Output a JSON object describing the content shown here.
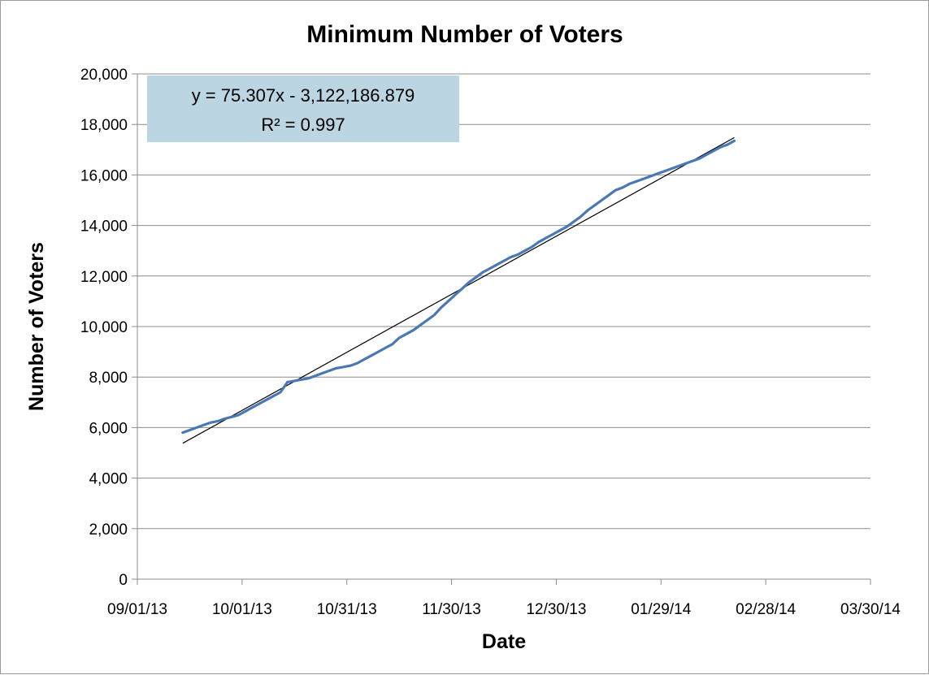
{
  "chart_data": {
    "type": "line",
    "title": "Minimum Number of Voters",
    "xlabel": "Date",
    "ylabel": "Number of Voters",
    "x_axis": {
      "kind": "date",
      "min": "2013-09-01",
      "max": "2014-03-30",
      "ticks": [
        "2013-09-01",
        "2013-10-01",
        "2013-10-31",
        "2013-11-30",
        "2013-12-30",
        "2014-01-29",
        "2014-02-28",
        "2014-03-30"
      ],
      "tick_labels": [
        "09/01/13",
        "10/01/13",
        "10/31/13",
        "11/30/13",
        "12/30/13",
        "01/29/14",
        "02/28/14",
        "03/30/14"
      ]
    },
    "y_axis": {
      "min": 0,
      "max": 20000,
      "ticks": [
        0,
        2000,
        4000,
        6000,
        8000,
        10000,
        12000,
        14000,
        16000,
        18000,
        20000
      ],
      "tick_labels": [
        "0",
        "2,000",
        "4,000",
        "6,000",
        "8,000",
        "10,000",
        "12,000",
        "14,000",
        "16,000",
        "18,000",
        "20,000"
      ]
    },
    "grid": {
      "horizontal": true,
      "vertical": false
    },
    "legend": "none",
    "series": [
      {
        "color": "#4a78b4",
        "points": [
          [
            "2013-09-14",
            5800
          ],
          [
            "2013-09-16",
            5900
          ],
          [
            "2013-09-18",
            6000
          ],
          [
            "2013-09-20",
            6100
          ],
          [
            "2013-09-22",
            6200
          ],
          [
            "2013-09-24",
            6250
          ],
          [
            "2013-09-26",
            6350
          ],
          [
            "2013-09-28",
            6420
          ],
          [
            "2013-09-30",
            6500
          ],
          [
            "2013-10-02",
            6650
          ],
          [
            "2013-10-04",
            6800
          ],
          [
            "2013-10-06",
            6950
          ],
          [
            "2013-10-08",
            7100
          ],
          [
            "2013-10-10",
            7250
          ],
          [
            "2013-10-12",
            7400
          ],
          [
            "2013-10-14",
            7800
          ],
          [
            "2013-10-16",
            7850
          ],
          [
            "2013-10-18",
            7900
          ],
          [
            "2013-10-20",
            7950
          ],
          [
            "2013-10-22",
            8050
          ],
          [
            "2013-10-24",
            8150
          ],
          [
            "2013-10-26",
            8250
          ],
          [
            "2013-10-28",
            8350
          ],
          [
            "2013-10-30",
            8400
          ],
          [
            "2013-11-01",
            8450
          ],
          [
            "2013-11-03",
            8550
          ],
          [
            "2013-11-05",
            8700
          ],
          [
            "2013-11-07",
            8850
          ],
          [
            "2013-11-09",
            9000
          ],
          [
            "2013-11-11",
            9150
          ],
          [
            "2013-11-13",
            9300
          ],
          [
            "2013-11-15",
            9550
          ],
          [
            "2013-11-17",
            9700
          ],
          [
            "2013-11-19",
            9850
          ],
          [
            "2013-11-21",
            10050
          ],
          [
            "2013-11-23",
            10250
          ],
          [
            "2013-11-25",
            10450
          ],
          [
            "2013-11-27",
            10750
          ],
          [
            "2013-11-29",
            11000
          ],
          [
            "2013-12-01",
            11250
          ],
          [
            "2013-12-03",
            11500
          ],
          [
            "2013-12-05",
            11750
          ],
          [
            "2013-12-07",
            11950
          ],
          [
            "2013-12-09",
            12150
          ],
          [
            "2013-12-11",
            12300
          ],
          [
            "2013-12-13",
            12450
          ],
          [
            "2013-12-15",
            12600
          ],
          [
            "2013-12-17",
            12750
          ],
          [
            "2013-12-19",
            12850
          ],
          [
            "2013-12-21",
            13000
          ],
          [
            "2013-12-23",
            13150
          ],
          [
            "2013-12-25",
            13350
          ],
          [
            "2013-12-27",
            13500
          ],
          [
            "2013-12-29",
            13650
          ],
          [
            "2013-12-31",
            13800
          ],
          [
            "2014-01-02",
            13950
          ],
          [
            "2014-01-04",
            14150
          ],
          [
            "2014-01-06",
            14350
          ],
          [
            "2014-01-08",
            14600
          ],
          [
            "2014-01-10",
            14800
          ],
          [
            "2014-01-12",
            15000
          ],
          [
            "2014-01-14",
            15200
          ],
          [
            "2014-01-16",
            15400
          ],
          [
            "2014-01-18",
            15500
          ],
          [
            "2014-01-20",
            15650
          ],
          [
            "2014-01-22",
            15750
          ],
          [
            "2014-01-24",
            15850
          ],
          [
            "2014-01-26",
            15950
          ],
          [
            "2014-01-28",
            16050
          ],
          [
            "2014-01-30",
            16150
          ],
          [
            "2014-02-01",
            16250
          ],
          [
            "2014-02-03",
            16350
          ],
          [
            "2014-02-05",
            16450
          ],
          [
            "2014-02-07",
            16550
          ],
          [
            "2014-02-09",
            16650
          ],
          [
            "2014-02-11",
            16800
          ],
          [
            "2014-02-13",
            16950
          ],
          [
            "2014-02-15",
            17100
          ],
          [
            "2014-02-17",
            17200
          ],
          [
            "2014-02-19",
            17350
          ]
        ]
      }
    ],
    "trendline": {
      "type": "linear",
      "color": "#000000",
      "x_start": "2013-09-14",
      "x_end": "2014-02-19",
      "y_start": 5380,
      "y_end": 17480,
      "equation": "y = 75.307x - 3,122,186.879",
      "r_squared": "R² = 0.997",
      "label_box_color": "#bcd5e2"
    }
  }
}
